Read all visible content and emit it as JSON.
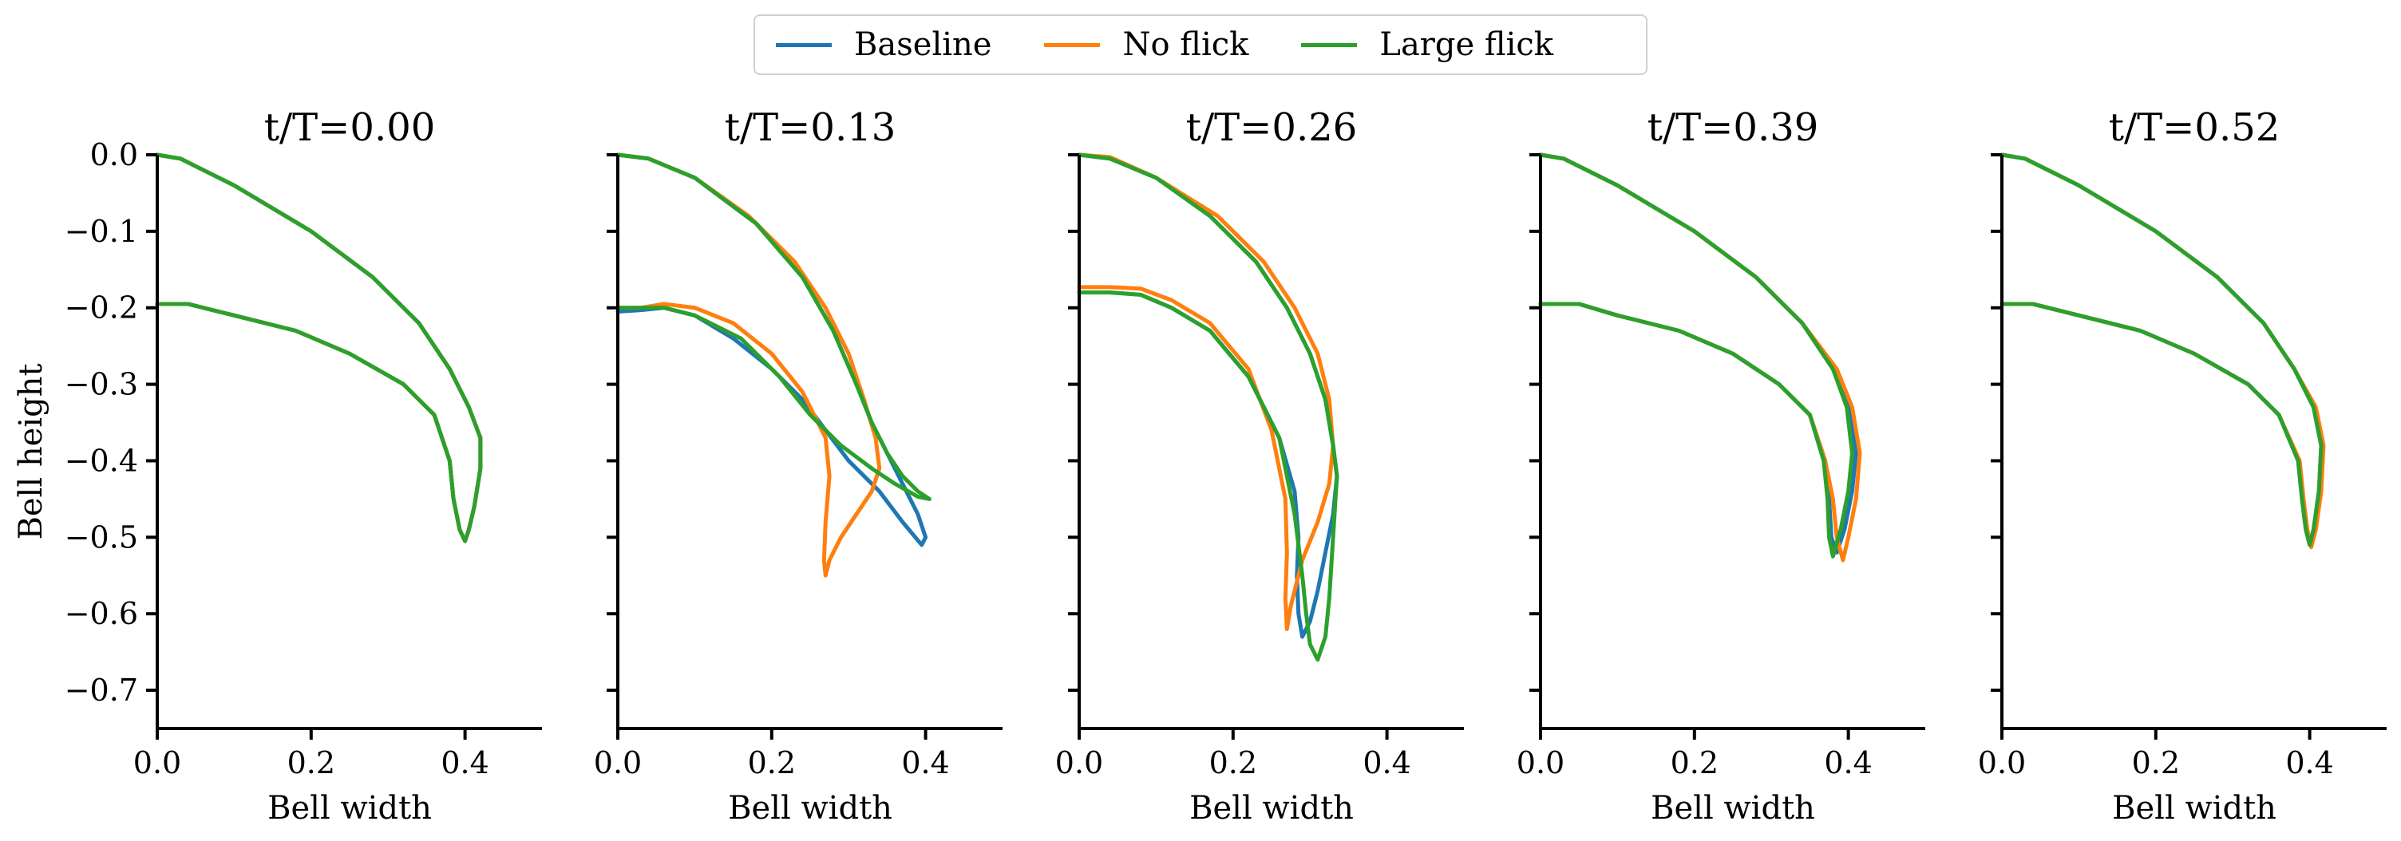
{
  "chart_data": {
    "type": "line",
    "legend": {
      "placement": "top-center",
      "entries": [
        {
          "name": "Baseline",
          "color": "#1f77b4"
        },
        {
          "name": "No flick",
          "color": "#ff7f0e"
        },
        {
          "name": "Large flick",
          "color": "#2ca02c"
        }
      ]
    },
    "shared_ylabel": "Bell height",
    "shared_xlabel": "Bell width",
    "xlim": [
      0.0,
      0.5
    ],
    "ylim": [
      -0.75,
      0.0
    ],
    "xticks": [
      "0.0",
      "0.2",
      "0.4"
    ],
    "xtick_values": [
      0.0,
      0.2,
      0.4
    ],
    "yticks": [
      "0.0",
      "−0.1",
      "−0.2",
      "−0.3",
      "−0.4",
      "−0.5",
      "−0.6",
      "−0.7"
    ],
    "ytick_values": [
      0.0,
      -0.1,
      -0.2,
      -0.3,
      -0.4,
      -0.5,
      -0.6,
      -0.7
    ],
    "grid": false,
    "panels": [
      {
        "title": "t/T=0.00",
        "series": [
          {
            "name": "Baseline",
            "x": [
              0,
              0.03,
              0.1,
              0.2,
              0.28,
              0.34,
              0.38,
              0.405,
              0.42,
              0.42,
              0.412,
              0.405,
              0.4,
              0.393,
              0.385,
              0.38,
              0.36,
              0.32,
              0.25,
              0.18,
              0.1,
              0.04,
              0
            ],
            "y": [
              0,
              -0.005,
              -0.04,
              -0.1,
              -0.16,
              -0.22,
              -0.28,
              -0.33,
              -0.37,
              -0.41,
              -0.46,
              -0.49,
              -0.505,
              -0.49,
              -0.45,
              -0.4,
              -0.34,
              -0.3,
              -0.26,
              -0.23,
              -0.21,
              -0.195,
              -0.195
            ]
          },
          {
            "name": "No flick",
            "x": [
              0,
              0.03,
              0.1,
              0.2,
              0.28,
              0.34,
              0.38,
              0.405,
              0.42,
              0.42,
              0.412,
              0.405,
              0.4,
              0.393,
              0.385,
              0.38,
              0.36,
              0.32,
              0.25,
              0.18,
              0.1,
              0.04,
              0
            ],
            "y": [
              0,
              -0.005,
              -0.04,
              -0.1,
              -0.16,
              -0.22,
              -0.28,
              -0.33,
              -0.37,
              -0.41,
              -0.46,
              -0.49,
              -0.505,
              -0.49,
              -0.45,
              -0.4,
              -0.34,
              -0.3,
              -0.26,
              -0.23,
              -0.21,
              -0.195,
              -0.195
            ]
          },
          {
            "name": "Large flick",
            "x": [
              0,
              0.03,
              0.1,
              0.2,
              0.28,
              0.34,
              0.38,
              0.405,
              0.42,
              0.42,
              0.412,
              0.405,
              0.4,
              0.393,
              0.385,
              0.38,
              0.36,
              0.32,
              0.25,
              0.18,
              0.1,
              0.04,
              0
            ],
            "y": [
              0,
              -0.005,
              -0.04,
              -0.1,
              -0.16,
              -0.22,
              -0.28,
              -0.33,
              -0.37,
              -0.41,
              -0.46,
              -0.49,
              -0.505,
              -0.49,
              -0.45,
              -0.4,
              -0.34,
              -0.3,
              -0.26,
              -0.23,
              -0.21,
              -0.195,
              -0.195
            ]
          }
        ]
      },
      {
        "title": "t/T=0.13",
        "series": [
          {
            "name": "Baseline",
            "x": [
              0,
              0.04,
              0.1,
              0.18,
              0.24,
              0.28,
              0.31,
              0.33,
              0.35,
              0.37,
              0.39,
              0.4,
              0.395,
              0.37,
              0.34,
              0.3,
              0.27,
              0.24,
              0.2,
              0.15,
              0.1,
              0.06,
              0.03,
              0
            ],
            "y": [
              0,
              -0.005,
              -0.03,
              -0.09,
              -0.16,
              -0.23,
              -0.3,
              -0.35,
              -0.39,
              -0.43,
              -0.47,
              -0.5,
              -0.51,
              -0.48,
              -0.44,
              -0.4,
              -0.36,
              -0.32,
              -0.28,
              -0.24,
              -0.21,
              -0.2,
              -0.203,
              -0.205
            ]
          },
          {
            "name": "No flick",
            "x": [
              0,
              0.04,
              0.1,
              0.17,
              0.23,
              0.27,
              0.3,
              0.32,
              0.335,
              0.34,
              0.33,
              0.31,
              0.29,
              0.275,
              0.27,
              0.268,
              0.27,
              0.275,
              0.27,
              0.24,
              0.2,
              0.15,
              0.1,
              0.06,
              0.03,
              0
            ],
            "y": [
              0,
              -0.005,
              -0.03,
              -0.08,
              -0.14,
              -0.2,
              -0.26,
              -0.32,
              -0.37,
              -0.41,
              -0.44,
              -0.47,
              -0.5,
              -0.53,
              -0.55,
              -0.53,
              -0.48,
              -0.42,
              -0.37,
              -0.31,
              -0.26,
              -0.22,
              -0.2,
              -0.195,
              -0.2,
              -0.2
            ]
          },
          {
            "name": "Large flick",
            "x": [
              0,
              0.04,
              0.1,
              0.18,
              0.24,
              0.28,
              0.31,
              0.33,
              0.35,
              0.37,
              0.39,
              0.405,
              0.39,
              0.36,
              0.33,
              0.29,
              0.25,
              0.21,
              0.16,
              0.1,
              0.06,
              0.03,
              0
            ],
            "y": [
              0,
              -0.005,
              -0.03,
              -0.09,
              -0.16,
              -0.23,
              -0.3,
              -0.35,
              -0.39,
              -0.42,
              -0.44,
              -0.45,
              -0.447,
              -0.43,
              -0.41,
              -0.38,
              -0.34,
              -0.29,
              -0.24,
              -0.21,
              -0.2,
              -0.2,
              -0.2
            ]
          }
        ]
      },
      {
        "title": "t/T=0.26",
        "series": [
          {
            "name": "Baseline",
            "x": [
              0,
              0.04,
              0.1,
              0.17,
              0.23,
              0.27,
              0.3,
              0.32,
              0.33,
              0.335,
              0.33,
              0.32,
              0.31,
              0.3,
              0.29,
              0.285,
              0.283,
              0.285,
              0.28,
              0.26,
              0.22,
              0.17,
              0.12,
              0.08,
              0.04,
              0
            ],
            "y": [
              0,
              -0.005,
              -0.03,
              -0.08,
              -0.14,
              -0.2,
              -0.26,
              -0.32,
              -0.38,
              -0.42,
              -0.47,
              -0.52,
              -0.57,
              -0.61,
              -0.63,
              -0.6,
              -0.55,
              -0.5,
              -0.44,
              -0.37,
              -0.29,
              -0.23,
              -0.2,
              -0.183,
              -0.18,
              -0.18
            ]
          },
          {
            "name": "No flick",
            "x": [
              0,
              0.04,
              0.1,
              0.18,
              0.24,
              0.28,
              0.31,
              0.325,
              0.33,
              0.325,
              0.31,
              0.29,
              0.275,
              0.27,
              0.268,
              0.27,
              0.268,
              0.25,
              0.22,
              0.17,
              0.12,
              0.08,
              0.04,
              0
            ],
            "y": [
              0,
              -0.003,
              -0.03,
              -0.08,
              -0.14,
              -0.2,
              -0.26,
              -0.32,
              -0.38,
              -0.43,
              -0.48,
              -0.53,
              -0.59,
              -0.62,
              -0.58,
              -0.52,
              -0.45,
              -0.36,
              -0.28,
              -0.22,
              -0.19,
              -0.175,
              -0.173,
              -0.173
            ]
          },
          {
            "name": "Large flick",
            "x": [
              0,
              0.04,
              0.1,
              0.17,
              0.23,
              0.27,
              0.3,
              0.32,
              0.33,
              0.335,
              0.33,
              0.325,
              0.32,
              0.31,
              0.3,
              0.295,
              0.29,
              0.28,
              0.26,
              0.22,
              0.17,
              0.12,
              0.08,
              0.04,
              0
            ],
            "y": [
              0,
              -0.005,
              -0.03,
              -0.08,
              -0.14,
              -0.2,
              -0.26,
              -0.32,
              -0.38,
              -0.42,
              -0.5,
              -0.58,
              -0.63,
              -0.66,
              -0.64,
              -0.6,
              -0.55,
              -0.47,
              -0.37,
              -0.29,
              -0.23,
              -0.2,
              -0.183,
              -0.18,
              -0.18
            ]
          }
        ]
      },
      {
        "title": "t/T=0.39",
        "series": [
          {
            "name": "Baseline",
            "x": [
              0,
              0.03,
              0.1,
              0.2,
              0.28,
              0.34,
              0.38,
              0.4,
              0.41,
              0.405,
              0.395,
              0.385,
              0.378,
              0.375,
              0.37,
              0.35,
              0.31,
              0.25,
              0.18,
              0.1,
              0.05,
              0
            ],
            "y": [
              0,
              -0.005,
              -0.04,
              -0.1,
              -0.16,
              -0.22,
              -0.28,
              -0.33,
              -0.39,
              -0.44,
              -0.49,
              -0.52,
              -0.5,
              -0.45,
              -0.4,
              -0.34,
              -0.3,
              -0.26,
              -0.23,
              -0.21,
              -0.195,
              -0.195
            ]
          },
          {
            "name": "No flick",
            "x": [
              0,
              0.03,
              0.1,
              0.2,
              0.28,
              0.34,
              0.385,
              0.405,
              0.415,
              0.41,
              0.4,
              0.393,
              0.385,
              0.38,
              0.37,
              0.35,
              0.31,
              0.25,
              0.18,
              0.1,
              0.05,
              0
            ],
            "y": [
              0,
              -0.005,
              -0.04,
              -0.1,
              -0.16,
              -0.22,
              -0.28,
              -0.33,
              -0.39,
              -0.45,
              -0.5,
              -0.53,
              -0.5,
              -0.45,
              -0.4,
              -0.34,
              -0.3,
              -0.26,
              -0.23,
              -0.21,
              -0.195,
              -0.195
            ]
          },
          {
            "name": "Large flick",
            "x": [
              0,
              0.03,
              0.1,
              0.2,
              0.28,
              0.34,
              0.38,
              0.398,
              0.405,
              0.4,
              0.39,
              0.38,
              0.375,
              0.373,
              0.368,
              0.35,
              0.31,
              0.25,
              0.18,
              0.1,
              0.05,
              0
            ],
            "y": [
              0,
              -0.005,
              -0.04,
              -0.1,
              -0.16,
              -0.22,
              -0.28,
              -0.33,
              -0.39,
              -0.44,
              -0.49,
              -0.525,
              -0.5,
              -0.45,
              -0.4,
              -0.34,
              -0.3,
              -0.26,
              -0.23,
              -0.21,
              -0.195,
              -0.195
            ]
          }
        ]
      },
      {
        "title": "t/T=0.52",
        "series": [
          {
            "name": "Baseline",
            "x": [
              0,
              0.03,
              0.1,
              0.2,
              0.28,
              0.34,
              0.38,
              0.405,
              0.415,
              0.412,
              0.405,
              0.4,
              0.395,
              0.39,
              0.385,
              0.36,
              0.32,
              0.25,
              0.18,
              0.1,
              0.04,
              0
            ],
            "y": [
              0,
              -0.005,
              -0.04,
              -0.1,
              -0.16,
              -0.22,
              -0.28,
              -0.33,
              -0.38,
              -0.44,
              -0.49,
              -0.51,
              -0.49,
              -0.45,
              -0.4,
              -0.34,
              -0.3,
              -0.26,
              -0.23,
              -0.21,
              -0.195,
              -0.195
            ]
          },
          {
            "name": "No flick",
            "x": [
              0,
              0.03,
              0.1,
              0.2,
              0.28,
              0.34,
              0.38,
              0.408,
              0.418,
              0.415,
              0.408,
              0.402,
              0.397,
              0.392,
              0.387,
              0.36,
              0.32,
              0.25,
              0.18,
              0.1,
              0.04,
              0
            ],
            "y": [
              0,
              -0.005,
              -0.04,
              -0.1,
              -0.16,
              -0.22,
              -0.28,
              -0.33,
              -0.38,
              -0.44,
              -0.49,
              -0.513,
              -0.49,
              -0.45,
              -0.4,
              -0.34,
              -0.3,
              -0.26,
              -0.23,
              -0.21,
              -0.195,
              -0.195
            ]
          },
          {
            "name": "Large flick",
            "x": [
              0,
              0.03,
              0.1,
              0.2,
              0.28,
              0.34,
              0.38,
              0.405,
              0.415,
              0.412,
              0.405,
              0.4,
              0.395,
              0.39,
              0.385,
              0.36,
              0.32,
              0.25,
              0.18,
              0.1,
              0.04,
              0
            ],
            "y": [
              0,
              -0.005,
              -0.04,
              -0.1,
              -0.16,
              -0.22,
              -0.28,
              -0.33,
              -0.38,
              -0.44,
              -0.49,
              -0.51,
              -0.49,
              -0.45,
              -0.4,
              -0.34,
              -0.3,
              -0.26,
              -0.23,
              -0.21,
              -0.195,
              -0.195
            ]
          }
        ]
      }
    ]
  }
}
